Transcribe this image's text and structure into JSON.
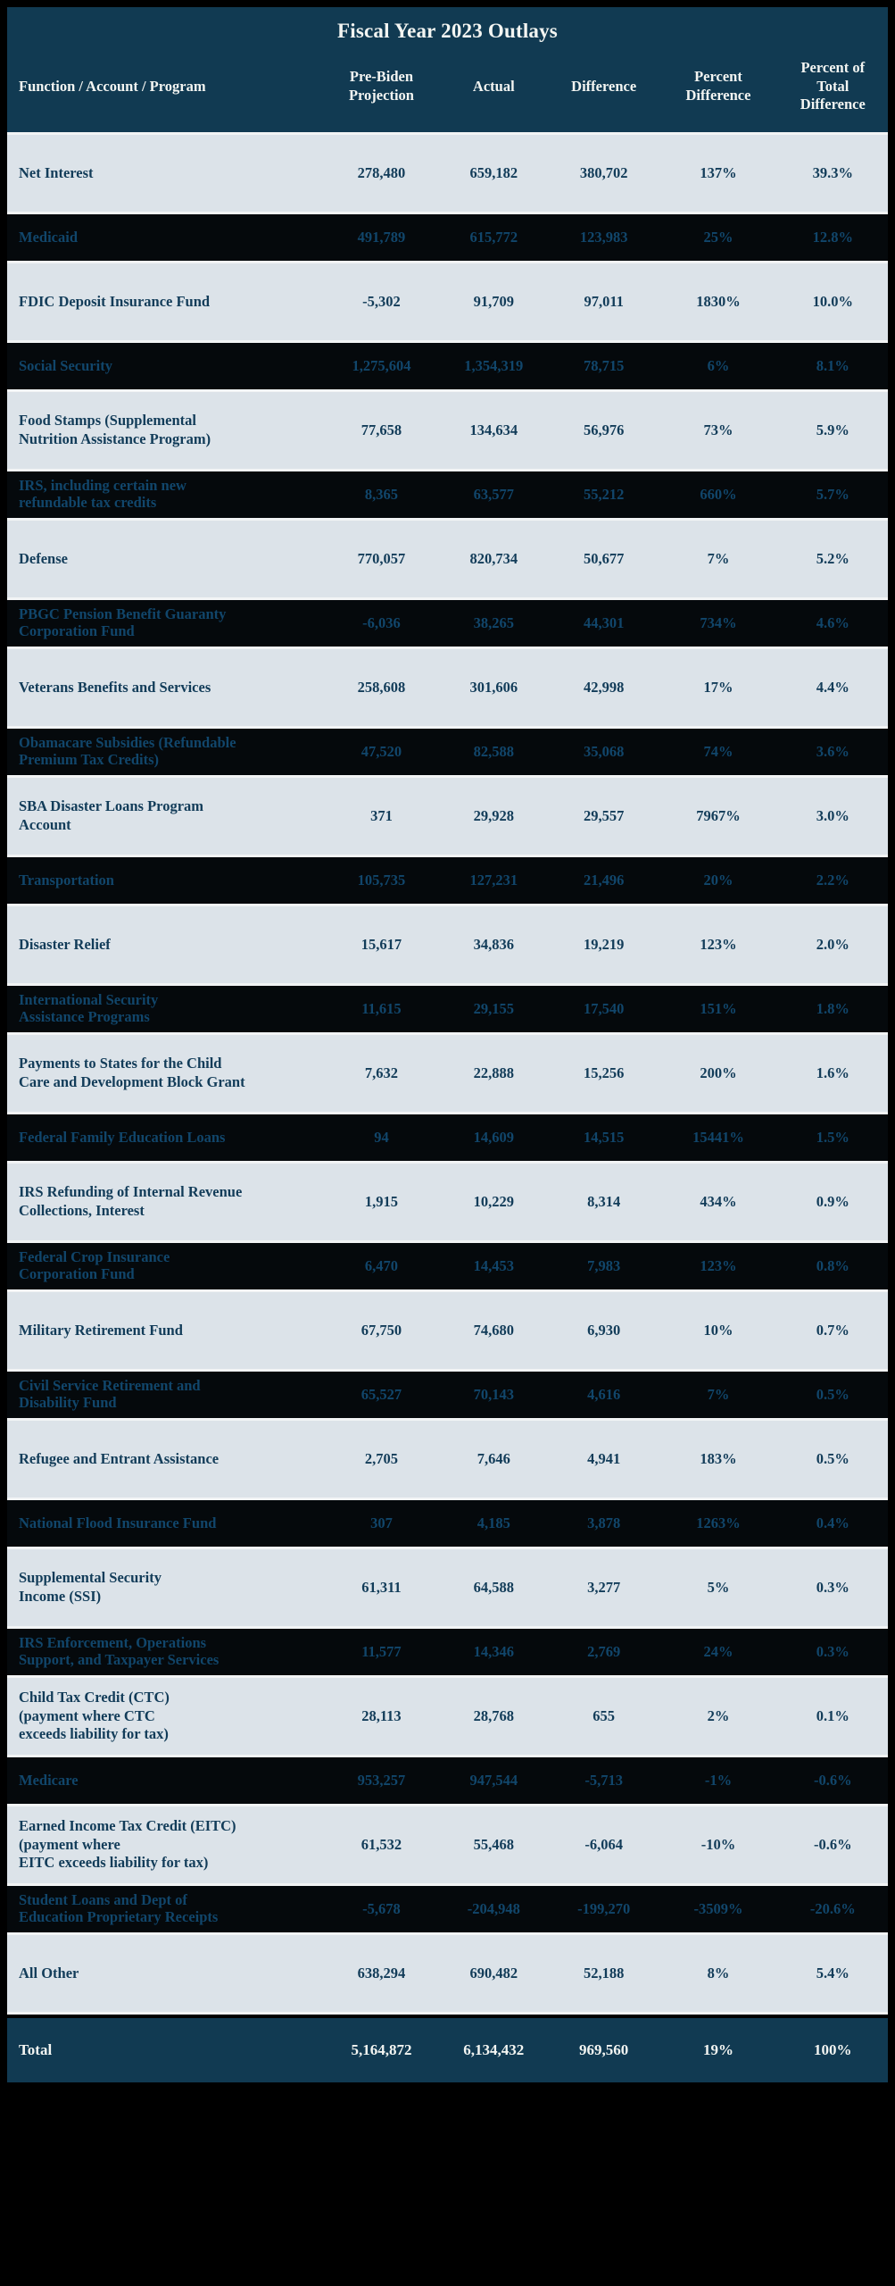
{
  "title": "Fiscal Year 2023 Outlays",
  "columns": [
    "Function / Account / Program",
    "Pre-Biden\nProjection",
    "Actual",
    "Difference",
    "Percent\nDifference",
    "Percent of\nTotal\nDifference"
  ],
  "colors": {
    "header_bg": "#113a52",
    "header_text": "#f3f5f2",
    "light_row_bg": "#dce3e9",
    "light_row_text": "#123c59",
    "dark_row_bg": "#05090c",
    "dark_row_text": "#11466b",
    "page_bg": "#000000"
  },
  "chart_data": {
    "type": "table",
    "title": "Fiscal Year 2023 Outlays",
    "note": "Dark rows render almost black with faint navy text in the source image"
  },
  "rows": [
    {
      "label": "Net Interest",
      "pre": "278,480",
      "actual": "659,182",
      "diff": "380,702",
      "pct": "137%",
      "pct_total": "39.3%",
      "shade": "light"
    },
    {
      "label": "Medicaid",
      "pre": "491,789",
      "actual": "615,772",
      "diff": "123,983",
      "pct": "25%",
      "pct_total": "12.8%",
      "shade": "dark"
    },
    {
      "label": "FDIC Deposit Insurance Fund",
      "pre": "-5,302",
      "actual": "91,709",
      "diff": "97,011",
      "pct": "1830%",
      "pct_total": "10.0%",
      "shade": "light"
    },
    {
      "label": "Social Security",
      "pre": "1,275,604",
      "actual": "1,354,319",
      "diff": "78,715",
      "pct": "6%",
      "pct_total": "8.1%",
      "shade": "dark"
    },
    {
      "label": "Food Stamps (Supplemental\nNutrition Assistance Program)",
      "pre": "77,658",
      "actual": "134,634",
      "diff": "56,976",
      "pct": "73%",
      "pct_total": "5.9%",
      "shade": "light"
    },
    {
      "label": "IRS, including certain new\nrefundable tax credits",
      "pre": "8,365",
      "actual": "63,577",
      "diff": "55,212",
      "pct": "660%",
      "pct_total": "5.7%",
      "shade": "dark"
    },
    {
      "label": "Defense",
      "pre": "770,057",
      "actual": "820,734",
      "diff": "50,677",
      "pct": "7%",
      "pct_total": "5.2%",
      "shade": "light"
    },
    {
      "label": "PBGC Pension Benefit Guaranty\nCorporation Fund",
      "pre": "-6,036",
      "actual": "38,265",
      "diff": "44,301",
      "pct": "734%",
      "pct_total": "4.6%",
      "shade": "dark"
    },
    {
      "label": "Veterans Benefits and Services",
      "pre": "258,608",
      "actual": "301,606",
      "diff": "42,998",
      "pct": "17%",
      "pct_total": "4.4%",
      "shade": "light"
    },
    {
      "label": "Obamacare Subsidies (Refundable\nPremium Tax Credits)",
      "pre": "47,520",
      "actual": "82,588",
      "diff": "35,068",
      "pct": "74%",
      "pct_total": "3.6%",
      "shade": "dark"
    },
    {
      "label": "SBA Disaster Loans Program\nAccount",
      "pre": "371",
      "actual": "29,928",
      "diff": "29,557",
      "pct": "7967%",
      "pct_total": "3.0%",
      "shade": "light"
    },
    {
      "label": "Transportation",
      "pre": "105,735",
      "actual": "127,231",
      "diff": "21,496",
      "pct": "20%",
      "pct_total": "2.2%",
      "shade": "dark"
    },
    {
      "label": "Disaster Relief",
      "pre": "15,617",
      "actual": "34,836",
      "diff": "19,219",
      "pct": "123%",
      "pct_total": "2.0%",
      "shade": "light"
    },
    {
      "label": "International Security\nAssistance Programs",
      "pre": "11,615",
      "actual": "29,155",
      "diff": "17,540",
      "pct": "151%",
      "pct_total": "1.8%",
      "shade": "dark"
    },
    {
      "label": "Payments to States for the Child\nCare and Development Block Grant",
      "pre": "7,632",
      "actual": "22,888",
      "diff": "15,256",
      "pct": "200%",
      "pct_total": "1.6%",
      "shade": "light"
    },
    {
      "label": "Federal Family Education Loans",
      "pre": "94",
      "actual": "14,609",
      "diff": "14,515",
      "pct": "15441%",
      "pct_total": "1.5%",
      "shade": "dark"
    },
    {
      "label": "IRS Refunding of Internal Revenue\nCollections, Interest",
      "pre": "1,915",
      "actual": "10,229",
      "diff": "8,314",
      "pct": "434%",
      "pct_total": "0.9%",
      "shade": "light"
    },
    {
      "label": "Federal Crop Insurance\nCorporation Fund",
      "pre": "6,470",
      "actual": "14,453",
      "diff": "7,983",
      "pct": "123%",
      "pct_total": "0.8%",
      "shade": "dark"
    },
    {
      "label": "Military Retirement Fund",
      "pre": "67,750",
      "actual": "74,680",
      "diff": "6,930",
      "pct": "10%",
      "pct_total": "0.7%",
      "shade": "light"
    },
    {
      "label": "Civil Service Retirement and\nDisability Fund",
      "pre": "65,527",
      "actual": "70,143",
      "diff": "4,616",
      "pct": "7%",
      "pct_total": "0.5%",
      "shade": "dark"
    },
    {
      "label": "Refugee and Entrant Assistance",
      "pre": "2,705",
      "actual": "7,646",
      "diff": "4,941",
      "pct": "183%",
      "pct_total": "0.5%",
      "shade": "light"
    },
    {
      "label": "National Flood Insurance Fund",
      "pre": "307",
      "actual": "4,185",
      "diff": "3,878",
      "pct": "1263%",
      "pct_total": "0.4%",
      "shade": "dark"
    },
    {
      "label": "Supplemental Security\nIncome (SSI)",
      "pre": "61,311",
      "actual": "64,588",
      "diff": "3,277",
      "pct": "5%",
      "pct_total": "0.3%",
      "shade": "light"
    },
    {
      "label": "IRS Enforcement, Operations\nSupport, and Taxpayer Services",
      "pre": "11,577",
      "actual": "14,346",
      "diff": "2,769",
      "pct": "24%",
      "pct_total": "0.3%",
      "shade": "dark"
    },
    {
      "label": "Child Tax Credit (CTC)\n(payment where CTC\nexceeds liability for tax)",
      "pre": "28,113",
      "actual": "28,768",
      "diff": "655",
      "pct": "2%",
      "pct_total": "0.1%",
      "shade": "light"
    },
    {
      "label": "Medicare",
      "pre": "953,257",
      "actual": "947,544",
      "diff": "-5,713",
      "pct": "-1%",
      "pct_total": "-0.6%",
      "shade": "dark"
    },
    {
      "label": "Earned Income Tax Credit (EITC)\n(payment where\nEITC exceeds liability for tax)",
      "pre": "61,532",
      "actual": "55,468",
      "diff": "-6,064",
      "pct": "-10%",
      "pct_total": "-0.6%",
      "shade": "light"
    },
    {
      "label": "Student Loans and Dept of\nEducation Proprietary Receipts",
      "pre": "-5,678",
      "actual": "-204,948",
      "diff": "-199,270",
      "pct": "-3509%",
      "pct_total": "-20.6%",
      "shade": "dark"
    },
    {
      "label": "All Other",
      "pre": "638,294",
      "actual": "690,482",
      "diff": "52,188",
      "pct": "8%",
      "pct_total": "5.4%",
      "shade": "light"
    },
    {
      "label": "Total",
      "pre": "5,164,872",
      "actual": "6,134,432",
      "diff": "969,560",
      "pct": "19%",
      "pct_total": "100%",
      "shade": "total"
    }
  ]
}
